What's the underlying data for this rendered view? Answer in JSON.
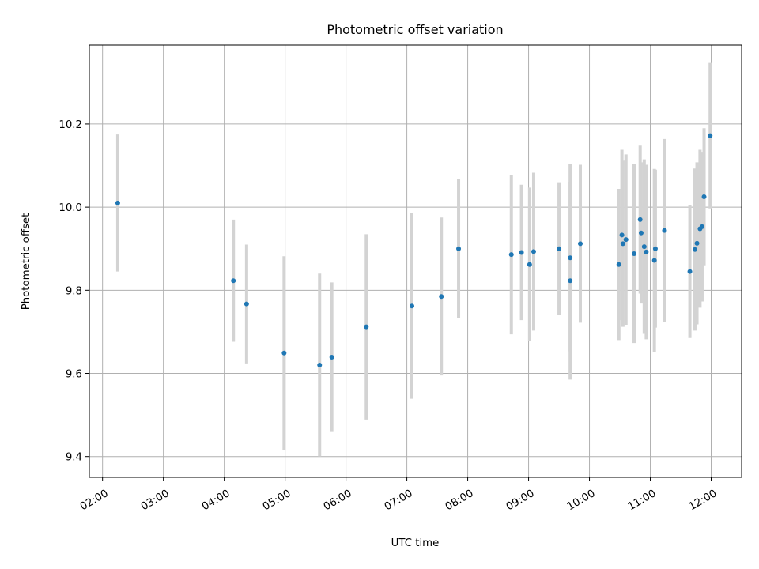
{
  "chart_data": {
    "type": "scatter",
    "title": "Photometric offset variation",
    "xlabel": "UTC time",
    "ylabel": "Photometric offset",
    "xlim": [
      "01:47",
      "12:30"
    ],
    "ylim": [
      9.35,
      10.39
    ],
    "x_ticks": [
      "02:00",
      "03:00",
      "04:00",
      "05:00",
      "06:00",
      "07:00",
      "08:00",
      "09:00",
      "10:00",
      "11:00",
      "12:00"
    ],
    "y_ticks": [
      "9.4",
      "9.6",
      "9.8",
      "10.0",
      "10.2"
    ],
    "grid": true,
    "errorbar_color": "#d3d3d3",
    "marker_color": "#1f77b4",
    "points": [
      {
        "t": "02:15",
        "y": 10.01,
        "err": 0.165
      },
      {
        "t": "04:09",
        "y": 9.823,
        "err": 0.147
      },
      {
        "t": "04:22",
        "y": 9.767,
        "err": 0.143
      },
      {
        "t": "04:59",
        "y": 9.649,
        "err": 0.233
      },
      {
        "t": "05:34",
        "y": 9.62,
        "err": 0.22
      },
      {
        "t": "05:46",
        "y": 9.639,
        "err": 0.18
      },
      {
        "t": "06:20",
        "y": 9.712,
        "err": 0.223
      },
      {
        "t": "07:05",
        "y": 9.762,
        "err": 0.223
      },
      {
        "t": "07:34",
        "y": 9.785,
        "err": 0.19
      },
      {
        "t": "07:51",
        "y": 9.9,
        "err": 0.167
      },
      {
        "t": "08:43",
        "y": 9.886,
        "err": 0.192
      },
      {
        "t": "08:53",
        "y": 9.891,
        "err": 0.163
      },
      {
        "t": "09:01",
        "y": 9.862,
        "err": 0.185
      },
      {
        "t": "09:05",
        "y": 9.893,
        "err": 0.19
      },
      {
        "t": "09:30",
        "y": 9.9,
        "err": 0.16
      },
      {
        "t": "09:41",
        "y": 9.823,
        "err": 0.238
      },
      {
        "t": "09:41",
        "y": 9.878,
        "err": 0.225
      },
      {
        "t": "09:51",
        "y": 9.912,
        "err": 0.19
      },
      {
        "t": "10:29",
        "y": 9.862,
        "err": 0.182
      },
      {
        "t": "10:32",
        "y": 9.933,
        "err": 0.205
      },
      {
        "t": "10:33",
        "y": 9.912,
        "err": 0.2
      },
      {
        "t": "10:36",
        "y": 9.922,
        "err": 0.205
      },
      {
        "t": "10:44",
        "y": 9.888,
        "err": 0.215
      },
      {
        "t": "10:50",
        "y": 9.97,
        "err": 0.178
      },
      {
        "t": "10:51",
        "y": 9.938,
        "err": 0.17
      },
      {
        "t": "10:54",
        "y": 9.905,
        "err": 0.21
      },
      {
        "t": "10:56",
        "y": 9.892,
        "err": 0.21
      },
      {
        "t": "11:04",
        "y": 9.872,
        "err": 0.22
      },
      {
        "t": "11:05",
        "y": 9.9,
        "err": 0.19
      },
      {
        "t": "11:14",
        "y": 9.944,
        "err": 0.22
      },
      {
        "t": "11:39",
        "y": 9.845,
        "err": 0.16
      },
      {
        "t": "11:44",
        "y": 9.898,
        "err": 0.195
      },
      {
        "t": "11:46",
        "y": 9.913,
        "err": 0.195
      },
      {
        "t": "11:49",
        "y": 9.948,
        "err": 0.19
      },
      {
        "t": "11:51",
        "y": 9.953,
        "err": 0.18
      },
      {
        "t": "11:53",
        "y": 10.025,
        "err": 0.165
      },
      {
        "t": "11:59",
        "y": 10.172,
        "err": 0.175
      }
    ]
  }
}
